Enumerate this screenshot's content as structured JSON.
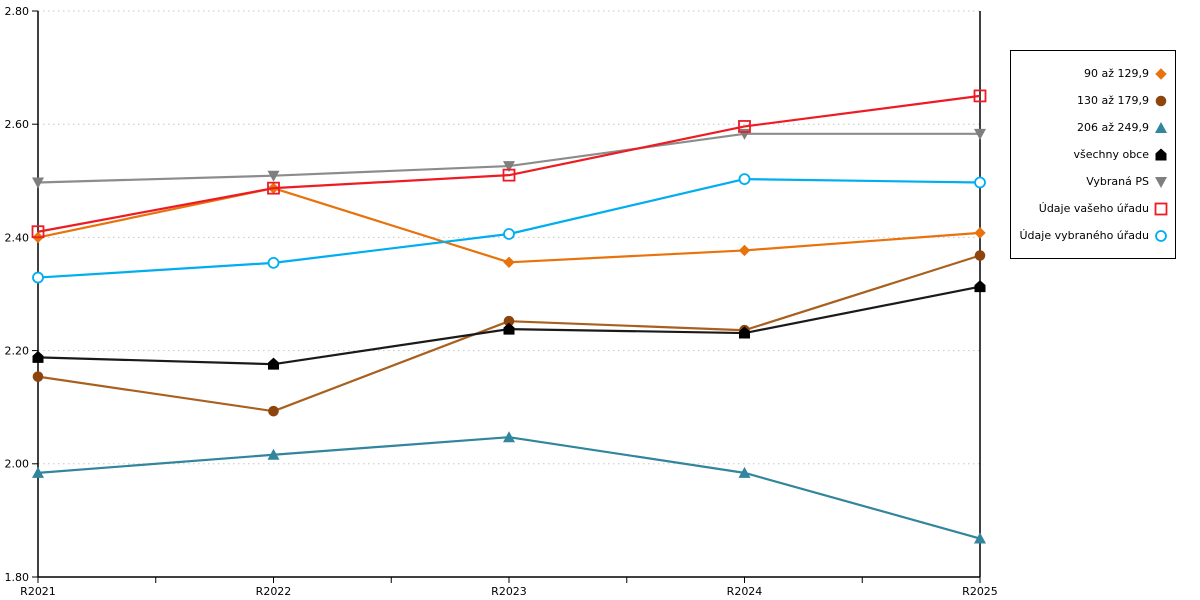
{
  "chart_data": {
    "type": "line",
    "title": "",
    "xlabel": "",
    "ylabel": "",
    "categories": [
      "R2021",
      "R2022",
      "R2023",
      "R2024",
      "R2025"
    ],
    "y_ticks": [
      "2.80",
      "2.60",
      "2.40",
      "2.20",
      "2.00",
      "1.80"
    ],
    "ylim": [
      1.8,
      2.8
    ],
    "grid": "horizontal-dotted",
    "legend_position": "right-outside",
    "series": [
      {
        "name": "90 až 129,9",
        "marker": "diamond",
        "line_color": "#E8720C",
        "marker_color": "#E8720C",
        "values": [
          2.4,
          2.487,
          2.356,
          2.377,
          2.408
        ]
      },
      {
        "name": "130 až 179,9",
        "marker": "circle",
        "line_color": "#A9601F",
        "marker_color": "#8E440D",
        "values": [
          2.154,
          2.093,
          2.252,
          2.236,
          2.368
        ]
      },
      {
        "name": "206 až 249,9",
        "marker": "triangle-up",
        "line_color": "#31859C",
        "marker_color": "#31859C",
        "values": [
          1.984,
          2.016,
          2.047,
          1.984,
          1.868
        ]
      },
      {
        "name": "všechny obce",
        "marker": "pentagon",
        "line_color": "#1A1A1A",
        "marker_color": "#000000",
        "values": [
          2.188,
          2.176,
          2.238,
          2.231,
          2.313
        ]
      },
      {
        "name": "Vybraná PS",
        "marker": "triangle-down",
        "line_color": "#8C8C8C",
        "marker_color": "#7F7F7F",
        "values": [
          2.497,
          2.509,
          2.526,
          2.583,
          2.583
        ]
      },
      {
        "name": "Údaje vašeho úřadu",
        "marker": "square-open",
        "line_color": "#ED1C24",
        "marker_color": "#ED1C24",
        "values": [
          2.41,
          2.487,
          2.51,
          2.596,
          2.65
        ]
      },
      {
        "name": "Údaje vybraného úřadu",
        "marker": "circle-open",
        "line_color": "#00AEEF",
        "marker_color": "#00AEEF",
        "values": [
          2.329,
          2.355,
          2.406,
          2.503,
          2.497
        ]
      }
    ],
    "colors": {
      "axis": "#000000",
      "grid": "#C6C6C6",
      "background": "#FFFFFF"
    }
  }
}
